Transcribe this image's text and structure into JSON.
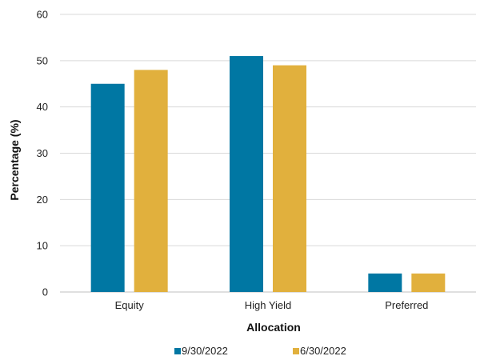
{
  "chart_data": {
    "type": "bar",
    "title": "",
    "xlabel": "Allocation",
    "ylabel": "Percentage (%)",
    "categories": [
      "Equity",
      "High Yield",
      "Preferred"
    ],
    "ylim": [
      0,
      60
    ],
    "yticks": [
      0,
      10,
      20,
      30,
      40,
      50,
      60
    ],
    "grid": true,
    "legend_position": "bottom",
    "series": [
      {
        "name": "9/30/2022",
        "color": "#0077a3",
        "values": [
          45,
          51,
          4
        ]
      },
      {
        "name": "6/30/2022",
        "color": "#e1b03d",
        "values": [
          48,
          49,
          4
        ]
      }
    ]
  }
}
